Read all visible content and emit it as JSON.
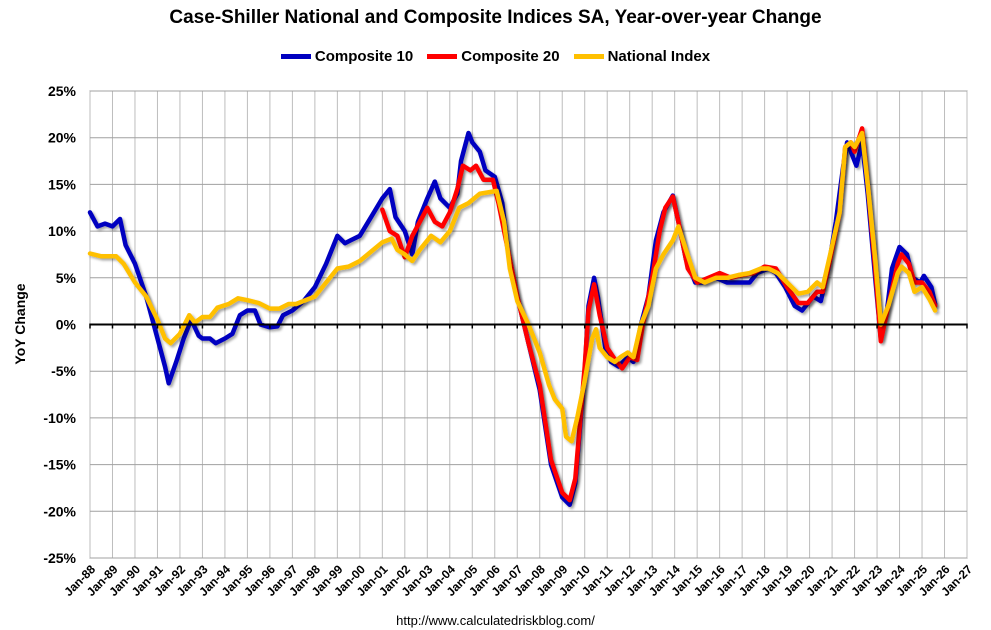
{
  "chart_data": {
    "type": "line",
    "title": "Case-Shiller National and Composite Indices SA, Year-over-year Change",
    "ylabel": "YoY Change",
    "xlabel": "",
    "ylim": [
      -25,
      25
    ],
    "y_ticks": [
      "-25%",
      "-20%",
      "-15%",
      "-10%",
      "-5%",
      "0%",
      "5%",
      "10%",
      "15%",
      "20%",
      "25%"
    ],
    "x_ticks": [
      "Jan-88",
      "Jan-89",
      "Jan-90",
      "Jan-91",
      "Jan-92",
      "Jan-93",
      "Jan-94",
      "Jan-95",
      "Jan-96",
      "Jan-97",
      "Jan-98",
      "Jan-99",
      "Jan-00",
      "Jan-01",
      "Jan-02",
      "Jan-03",
      "Jan-04",
      "Jan-05",
      "Jan-06",
      "Jan-07",
      "Jan-08",
      "Jan-09",
      "Jan-10",
      "Jan-11",
      "Jan-12",
      "Jan-13",
      "Jan-14",
      "Jan-15",
      "Jan-16",
      "Jan-17",
      "Jan-18",
      "Jan-19",
      "Jan-20",
      "Jan-21",
      "Jan-22",
      "Jan-23",
      "Jan-24",
      "Jan-25",
      "Jan-26",
      "Jan-27"
    ],
    "grid": true,
    "legend_position": "top",
    "series": [
      {
        "name": "Composite 10",
        "color": "#0000C0",
        "points": [
          [
            "1988-01",
            12.0
          ],
          [
            "1988-05",
            10.5
          ],
          [
            "1988-09",
            10.8
          ],
          [
            "1989-01",
            10.5
          ],
          [
            "1989-05",
            11.3
          ],
          [
            "1989-08",
            8.5
          ],
          [
            "1990-01",
            6.5
          ],
          [
            "1990-07",
            3.0
          ],
          [
            "1991-01",
            -1.5
          ],
          [
            "1991-05",
            -4.5
          ],
          [
            "1991-07",
            -6.3
          ],
          [
            "1991-11",
            -4.0
          ],
          [
            "1992-03",
            -1.5
          ],
          [
            "1992-07",
            0.5
          ],
          [
            "1992-11",
            -1.2
          ],
          [
            "1993-01",
            -1.5
          ],
          [
            "1993-05",
            -1.5
          ],
          [
            "1993-08",
            -2.0
          ],
          [
            "1994-01",
            -1.5
          ],
          [
            "1994-05",
            -1.0
          ],
          [
            "1994-09",
            1.0
          ],
          [
            "1995-01",
            1.5
          ],
          [
            "1995-05",
            1.5
          ],
          [
            "1995-08",
            0.0
          ],
          [
            "1996-01",
            -0.3
          ],
          [
            "1996-05",
            -0.2
          ],
          [
            "1996-08",
            1.0
          ],
          [
            "1997-01",
            1.5
          ],
          [
            "1997-07",
            2.5
          ],
          [
            "1998-01",
            4.0
          ],
          [
            "1998-07",
            6.5
          ],
          [
            "1999-01",
            9.5
          ],
          [
            "1999-05",
            8.7
          ],
          [
            "1999-08",
            9.0
          ],
          [
            "2000-01",
            9.5
          ],
          [
            "2000-07",
            11.5
          ],
          [
            "2001-01",
            13.5
          ],
          [
            "2001-05",
            14.5
          ],
          [
            "2001-08",
            11.5
          ],
          [
            "2002-01",
            10.0
          ],
          [
            "2002-05",
            7.5
          ],
          [
            "2002-08",
            11.0
          ],
          [
            "2003-01",
            13.5
          ],
          [
            "2003-05",
            15.3
          ],
          [
            "2003-08",
            13.5
          ],
          [
            "2004-01",
            12.5
          ],
          [
            "2004-05",
            14.0
          ],
          [
            "2004-07",
            17.5
          ],
          [
            "2004-11",
            20.5
          ],
          [
            "2005-01",
            19.5
          ],
          [
            "2005-05",
            18.5
          ],
          [
            "2005-08",
            16.5
          ],
          [
            "2006-01",
            15.8
          ],
          [
            "2006-05",
            13.0
          ],
          [
            "2006-08",
            8.0
          ],
          [
            "2007-01",
            3.0
          ],
          [
            "2007-07",
            -2.0
          ],
          [
            "2008-01",
            -7.0
          ],
          [
            "2008-07",
            -15.0
          ],
          [
            "2009-01",
            -18.5
          ],
          [
            "2009-05",
            -19.3
          ],
          [
            "2009-08",
            -17.0
          ],
          [
            "2010-01",
            -5.0
          ],
          [
            "2010-03",
            2.0
          ],
          [
            "2010-06",
            5.0
          ],
          [
            "2010-08",
            3.0
          ],
          [
            "2010-12",
            -2.5
          ],
          [
            "2011-03",
            -4.0
          ],
          [
            "2011-07",
            -4.5
          ],
          [
            "2011-12",
            -3.5
          ],
          [
            "2012-03",
            -4.0
          ],
          [
            "2012-07",
            0.0
          ],
          [
            "2012-11",
            3.0
          ],
          [
            "2013-03",
            9.0
          ],
          [
            "2013-07",
            12.0
          ],
          [
            "2013-12",
            13.8
          ],
          [
            "2014-03",
            11.0
          ],
          [
            "2014-07",
            7.0
          ],
          [
            "2014-12",
            4.5
          ],
          [
            "2015-05",
            4.5
          ],
          [
            "2015-11",
            5.0
          ],
          [
            "2016-05",
            4.5
          ],
          [
            "2016-11",
            4.5
          ],
          [
            "2017-05",
            4.5
          ],
          [
            "2017-09",
            5.5
          ],
          [
            "2018-03",
            6.0
          ],
          [
            "2018-07",
            5.5
          ],
          [
            "2018-12",
            4.0
          ],
          [
            "2019-05",
            2.0
          ],
          [
            "2019-09",
            1.5
          ],
          [
            "2020-03",
            3.0
          ],
          [
            "2020-07",
            2.5
          ],
          [
            "2020-11",
            6.0
          ],
          [
            "2021-03",
            11.0
          ],
          [
            "2021-07",
            17.0
          ],
          [
            "2021-09",
            19.5
          ],
          [
            "2021-12",
            18.0
          ],
          [
            "2022-02",
            17.0
          ],
          [
            "2022-05",
            19.5
          ],
          [
            "2022-08",
            14.0
          ],
          [
            "2022-12",
            5.0
          ],
          [
            "2023-03",
            -1.5
          ],
          [
            "2023-06",
            1.0
          ],
          [
            "2023-09",
            6.0
          ],
          [
            "2024-01",
            8.3
          ],
          [
            "2024-05",
            7.5
          ],
          [
            "2024-08",
            5.0
          ],
          [
            "2024-12",
            4.5
          ],
          [
            "2025-02",
            5.2
          ],
          [
            "2025-06",
            4.0
          ],
          [
            "2025-08",
            2.2
          ]
        ]
      },
      {
        "name": "Composite 20",
        "color": "#FF0000",
        "points": [
          [
            "2001-01",
            12.3
          ],
          [
            "2001-05",
            10.0
          ],
          [
            "2001-09",
            9.5
          ],
          [
            "2002-01",
            7.2
          ],
          [
            "2002-05",
            9.5
          ],
          [
            "2002-09",
            11.0
          ],
          [
            "2003-01",
            12.5
          ],
          [
            "2003-05",
            11.0
          ],
          [
            "2003-09",
            10.5
          ],
          [
            "2004-01",
            12.0
          ],
          [
            "2004-05",
            14.5
          ],
          [
            "2004-08",
            17.0
          ],
          [
            "2004-12",
            16.5
          ],
          [
            "2005-03",
            17.0
          ],
          [
            "2005-07",
            15.5
          ],
          [
            "2005-12",
            15.5
          ],
          [
            "2006-03",
            13.0
          ],
          [
            "2006-07",
            9.0
          ],
          [
            "2007-01",
            3.0
          ],
          [
            "2007-07",
            -2.0
          ],
          [
            "2008-01",
            -6.5
          ],
          [
            "2008-07",
            -14.5
          ],
          [
            "2009-01",
            -18.0
          ],
          [
            "2009-05",
            -18.8
          ],
          [
            "2009-08",
            -16.5
          ],
          [
            "2010-01",
            -4.5
          ],
          [
            "2010-03",
            1.5
          ],
          [
            "2010-06",
            4.3
          ],
          [
            "2010-09",
            1.0
          ],
          [
            "2011-01",
            -2.5
          ],
          [
            "2011-05",
            -3.7
          ],
          [
            "2011-09",
            -4.7
          ],
          [
            "2012-01",
            -3.5
          ],
          [
            "2012-05",
            -3.8
          ],
          [
            "2012-08",
            0.0
          ],
          [
            "2013-01",
            5.0
          ],
          [
            "2013-05",
            10.0
          ],
          [
            "2013-08",
            12.5
          ],
          [
            "2013-12",
            13.7
          ],
          [
            "2014-03",
            11.0
          ],
          [
            "2014-08",
            6.0
          ],
          [
            "2015-01",
            4.5
          ],
          [
            "2015-07",
            5.0
          ],
          [
            "2016-01",
            5.5
          ],
          [
            "2016-07",
            5.0
          ],
          [
            "2017-01",
            5.3
          ],
          [
            "2017-07",
            5.5
          ],
          [
            "2018-01",
            6.2
          ],
          [
            "2018-07",
            6.0
          ],
          [
            "2019-01",
            4.0
          ],
          [
            "2019-07",
            2.3
          ],
          [
            "2019-12",
            2.3
          ],
          [
            "2020-05",
            3.5
          ],
          [
            "2020-08",
            3.5
          ],
          [
            "2020-12",
            7.0
          ],
          [
            "2021-05",
            12.0
          ],
          [
            "2021-08",
            19.0
          ],
          [
            "2021-11",
            19.5
          ],
          [
            "2022-01",
            18.5
          ],
          [
            "2022-05",
            21.0
          ],
          [
            "2022-08",
            15.0
          ],
          [
            "2022-12",
            6.0
          ],
          [
            "2023-03",
            -1.8
          ],
          [
            "2023-07",
            2.0
          ],
          [
            "2023-12",
            6.5
          ],
          [
            "2024-02",
            7.5
          ],
          [
            "2024-06",
            6.5
          ],
          [
            "2024-09",
            4.5
          ],
          [
            "2025-01",
            4.5
          ],
          [
            "2025-05",
            3.5
          ],
          [
            "2025-08",
            2.0
          ]
        ]
      },
      {
        "name": "National Index",
        "color": "#FFC000",
        "points": [
          [
            "1988-01",
            7.6
          ],
          [
            "1988-07",
            7.3
          ],
          [
            "1989-03",
            7.3
          ],
          [
            "1989-07",
            6.5
          ],
          [
            "1990-01",
            4.5
          ],
          [
            "1990-07",
            3.0
          ],
          [
            "1991-01",
            0.5
          ],
          [
            "1991-05",
            -1.5
          ],
          [
            "1991-08",
            -2.0
          ],
          [
            "1992-01",
            -1.0
          ],
          [
            "1992-06",
            1.0
          ],
          [
            "1992-09",
            0.2
          ],
          [
            "1993-01",
            0.8
          ],
          [
            "1993-05",
            0.8
          ],
          [
            "1993-09",
            1.8
          ],
          [
            "1994-03",
            2.2
          ],
          [
            "1994-08",
            2.8
          ],
          [
            "1995-01",
            2.6
          ],
          [
            "1995-07",
            2.3
          ],
          [
            "1996-01",
            1.7
          ],
          [
            "1996-06",
            1.7
          ],
          [
            "1996-11",
            2.2
          ],
          [
            "1997-03",
            2.2
          ],
          [
            "1997-08",
            2.6
          ],
          [
            "1998-01",
            3.0
          ],
          [
            "1998-07",
            4.5
          ],
          [
            "1999-01",
            6.0
          ],
          [
            "1999-07",
            6.2
          ],
          [
            "2000-01",
            6.8
          ],
          [
            "2000-07",
            7.8
          ],
          [
            "2001-01",
            8.8
          ],
          [
            "2001-06",
            9.2
          ],
          [
            "2001-09",
            8.0
          ],
          [
            "2002-01",
            7.5
          ],
          [
            "2002-05",
            6.8
          ],
          [
            "2002-09",
            8.0
          ],
          [
            "2003-03",
            9.5
          ],
          [
            "2003-08",
            8.8
          ],
          [
            "2004-01",
            10.0
          ],
          [
            "2004-06",
            12.5
          ],
          [
            "2004-11",
            13.0
          ],
          [
            "2005-05",
            14.0
          ],
          [
            "2005-11",
            14.2
          ],
          [
            "2006-02",
            14.3
          ],
          [
            "2006-06",
            11.0
          ],
          [
            "2006-09",
            6.0
          ],
          [
            "2007-01",
            2.5
          ],
          [
            "2007-07",
            0.0
          ],
          [
            "2008-01",
            -3.0
          ],
          [
            "2008-06",
            -6.5
          ],
          [
            "2008-09",
            -8.0
          ],
          [
            "2009-01",
            -9.0
          ],
          [
            "2009-03",
            -12.0
          ],
          [
            "2009-06",
            -12.5
          ],
          [
            "2009-09",
            -10.0
          ],
          [
            "2010-01",
            -6.0
          ],
          [
            "2010-05",
            -1.5
          ],
          [
            "2010-07",
            -0.5
          ],
          [
            "2010-09",
            -2.5
          ],
          [
            "2011-01",
            -3.5
          ],
          [
            "2011-05",
            -4.0
          ],
          [
            "2011-08",
            -3.5
          ],
          [
            "2011-12",
            -3.0
          ],
          [
            "2012-03",
            -3.5
          ],
          [
            "2012-07",
            0.0
          ],
          [
            "2012-11",
            2.0
          ],
          [
            "2013-03",
            6.0
          ],
          [
            "2013-07",
            7.5
          ],
          [
            "2013-12",
            9.0
          ],
          [
            "2014-03",
            10.5
          ],
          [
            "2014-07",
            8.0
          ],
          [
            "2014-12",
            5.0
          ],
          [
            "2015-05",
            4.5
          ],
          [
            "2015-11",
            5.0
          ],
          [
            "2016-05",
            5.0
          ],
          [
            "2016-11",
            5.3
          ],
          [
            "2017-05",
            5.5
          ],
          [
            "2017-11",
            6.0
          ],
          [
            "2018-03",
            6.0
          ],
          [
            "2018-08",
            5.5
          ],
          [
            "2019-01",
            4.5
          ],
          [
            "2019-07",
            3.3
          ],
          [
            "2019-12",
            3.5
          ],
          [
            "2020-05",
            4.5
          ],
          [
            "2020-08",
            4.0
          ],
          [
            "2020-12",
            7.5
          ],
          [
            "2021-05",
            12.0
          ],
          [
            "2021-08",
            19.0
          ],
          [
            "2021-11",
            19.5
          ],
          [
            "2022-01",
            19.0
          ],
          [
            "2022-05",
            20.5
          ],
          [
            "2022-08",
            15.0
          ],
          [
            "2022-12",
            7.0
          ],
          [
            "2023-03",
            0.0
          ],
          [
            "2023-07",
            2.0
          ],
          [
            "2023-12",
            5.5
          ],
          [
            "2024-02",
            6.2
          ],
          [
            "2024-06",
            5.5
          ],
          [
            "2024-09",
            3.5
          ],
          [
            "2025-01",
            4.0
          ],
          [
            "2025-05",
            2.7
          ],
          [
            "2025-08",
            1.5
          ]
        ]
      }
    ]
  },
  "footer": {
    "source_url": "http://www.calculatedriskblog.com/"
  }
}
